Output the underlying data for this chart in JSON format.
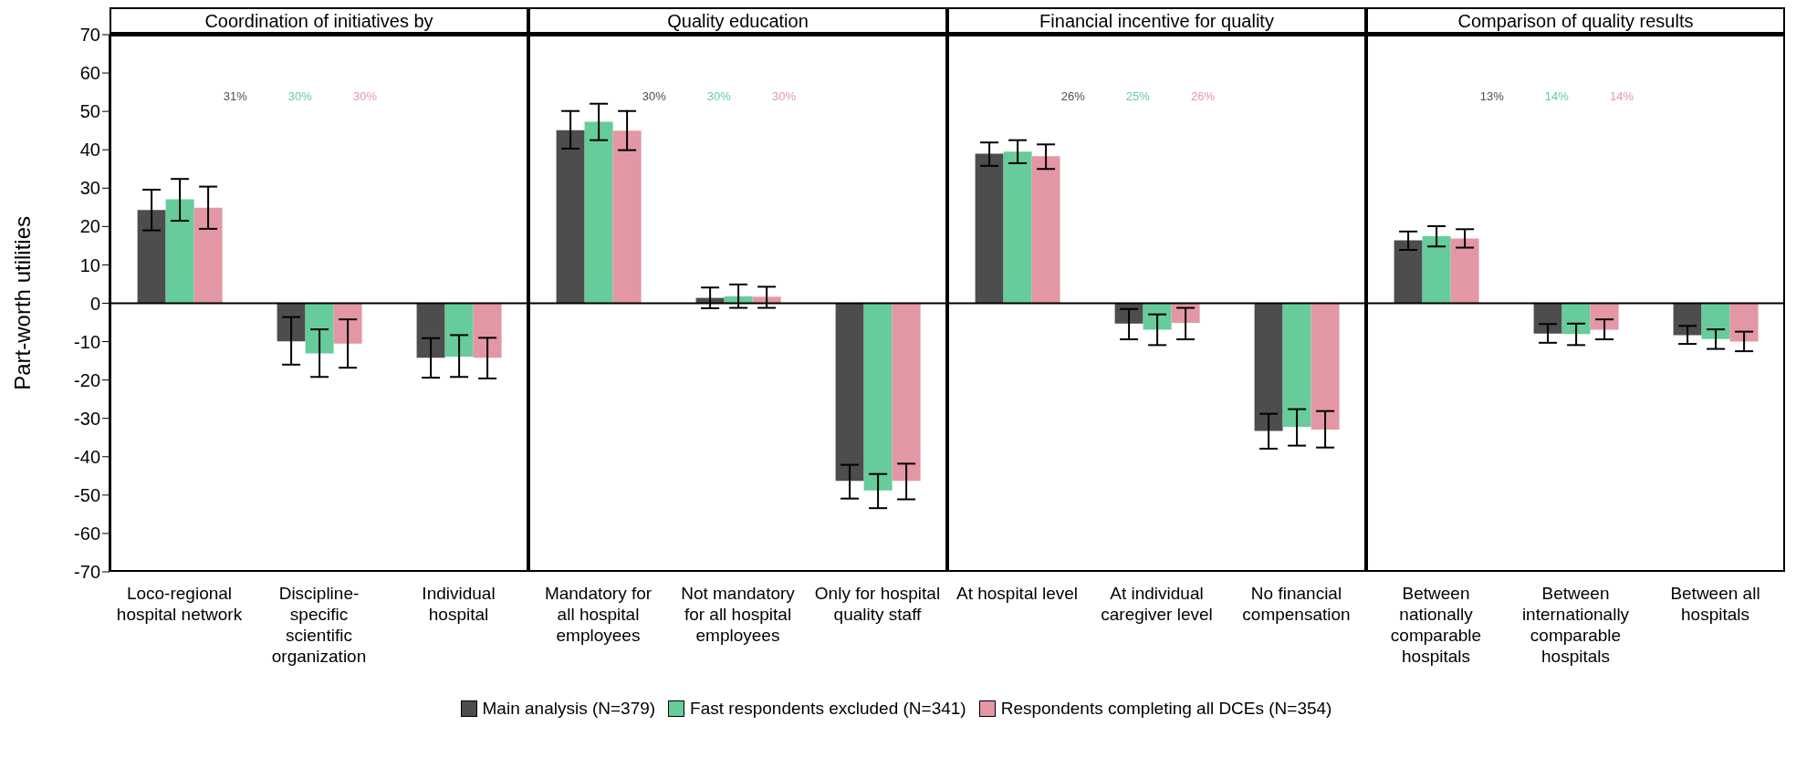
{
  "chart_data": [
    {
      "type": "bar",
      "title": "Coordination of  initiatives by",
      "ylabel": "Part-worth utilities",
      "categories": [
        "Loco-regional hospital network",
        "Discipline-specific scientific organization",
        "Individual hospital"
      ],
      "series": [
        {
          "name": "Main analysis (N=379)",
          "color": "#4d4d4d",
          "values": [
            24.3,
            -9.9,
            -14.2
          ],
          "errors": [
            [
              19.0,
              29.6
            ],
            [
              -16.0,
              -3.6
            ],
            [
              -19.4,
              -9.1
            ]
          ]
        },
        {
          "name": "Fast respondents excluded (N=341)",
          "color": "#66cc99",
          "values": [
            27.1,
            -13.1,
            -13.9
          ],
          "errors": [
            [
              21.5,
              32.4
            ],
            [
              -19.2,
              -6.8
            ],
            [
              -19.2,
              -8.3
            ]
          ]
        },
        {
          "name": "Respondents completing all DCEs (N=354)",
          "color": "#e397a5",
          "values": [
            24.9,
            -10.5,
            -14.2
          ],
          "errors": [
            [
              19.4,
              30.4
            ],
            [
              -16.8,
              -4.2
            ],
            [
              -19.6,
              -9.0
            ]
          ]
        }
      ],
      "ylim": [
        -70,
        70
      ],
      "yticks": [
        -70,
        -60,
        -50,
        -40,
        -30,
        -20,
        -10,
        0,
        10,
        20,
        30,
        40,
        50,
        60,
        70
      ],
      "annotations": [
        "31%",
        "30%",
        "30%"
      ],
      "ref_lines": [
        {
          "axis": "y",
          "value": 0
        }
      ],
      "legend": "bottom"
    },
    {
      "type": "bar",
      "title": "Quality education",
      "categories": [
        "Mandatory for all hospital employees",
        "Not mandatory for all hospital employees",
        "Only for hospital quality staff"
      ],
      "series": [
        {
          "color": "#4d4d4d",
          "values": [
            45.1,
            1.4,
            -46.3
          ],
          "errors": [
            [
              40.3,
              50.1
            ],
            [
              -1.3,
              4.1
            ],
            [
              -50.9,
              -42.1
            ]
          ]
        },
        {
          "color": "#66cc99",
          "values": [
            47.3,
            1.8,
            -48.8
          ],
          "errors": [
            [
              42.5,
              52.0
            ],
            [
              -1.2,
              4.9
            ],
            [
              -53.4,
              -44.5
            ]
          ]
        },
        {
          "color": "#e397a5",
          "values": [
            45.0,
            1.7,
            -46.3
          ],
          "errors": [
            [
              39.9,
              50.1
            ],
            [
              -1.2,
              4.3
            ],
            [
              -51.1,
              -41.8
            ]
          ]
        }
      ],
      "ylim": [
        -70,
        70
      ],
      "yticks": [
        -70,
        -60,
        -50,
        -40,
        -30,
        -20,
        -10,
        0,
        10,
        20,
        30,
        40,
        50,
        60,
        70
      ],
      "annotations": [
        "30%",
        "30%",
        "30%"
      ],
      "ref_lines": [
        {
          "axis": "y",
          "value": 0
        }
      ],
      "tick_labels": "x"
    },
    {
      "type": "bar",
      "title": "Financial incentive for quality",
      "categories": [
        "At hospital level",
        "At individual caregiver level",
        "No financial compensation"
      ],
      "series": [
        {
          "color": "#4d4d4d",
          "values": [
            39.0,
            -5.3,
            -33.3
          ],
          "errors": [
            [
              35.8,
              41.9
            ],
            [
              -9.4,
              -1.5
            ],
            [
              -37.9,
              -28.8
            ]
          ]
        },
        {
          "color": "#66cc99",
          "values": [
            39.5,
            -6.9,
            -32.2
          ],
          "errors": [
            [
              36.5,
              42.5
            ],
            [
              -10.9,
              -2.9
            ],
            [
              -37.1,
              -27.6
            ]
          ]
        },
        {
          "color": "#e397a5",
          "values": [
            38.3,
            -5.1,
            -32.9
          ],
          "errors": [
            [
              35.0,
              41.4
            ],
            [
              -9.4,
              -1.2
            ],
            [
              -37.6,
              -28.1
            ]
          ]
        }
      ],
      "ylim": [
        -70,
        70
      ],
      "yticks": [
        -70,
        -60,
        -50,
        -40,
        -30,
        -20,
        -10,
        0,
        10,
        20,
        30,
        40,
        50,
        60,
        70
      ],
      "annotations": [
        "26%",
        "25%",
        "26%"
      ],
      "ref_lines": [
        {
          "axis": "y",
          "value": 0
        }
      ],
      "tick_labels": "x"
    },
    {
      "type": "bar",
      "title": "Comparison of quality results",
      "categories": [
        "Between nationally comparable hospitals",
        "Between internationally comparable hospitals",
        "Between all hospitals"
      ],
      "series": [
        {
          "color": "#4d4d4d",
          "values": [
            16.4,
            -7.9,
            -8.3
          ],
          "errors": [
            [
              13.9,
              18.7
            ],
            [
              -10.3,
              -5.4
            ],
            [
              -10.6,
              -5.9
            ]
          ]
        },
        {
          "color": "#66cc99",
          "values": [
            17.5,
            -8.0,
            -9.3
          ],
          "errors": [
            [
              14.8,
              20.1
            ],
            [
              -10.9,
              -5.3
            ],
            [
              -11.9,
              -6.8
            ]
          ]
        },
        {
          "color": "#e397a5",
          "values": [
            16.9,
            -6.9,
            -10.0
          ],
          "errors": [
            [
              14.5,
              19.3
            ],
            [
              -9.4,
              -4.2
            ],
            [
              -12.5,
              -7.4
            ]
          ]
        }
      ],
      "ylim": [
        -70,
        70
      ],
      "yticks": [
        -70,
        -60,
        -50,
        -40,
        -30,
        -20,
        -10,
        0,
        10,
        20,
        30,
        40,
        50,
        60,
        70
      ],
      "annotations": [
        "13%",
        "14%",
        "14%"
      ],
      "ref_lines": [
        {
          "axis": "y",
          "value": 0
        }
      ],
      "tick_labels": "x"
    }
  ]
}
